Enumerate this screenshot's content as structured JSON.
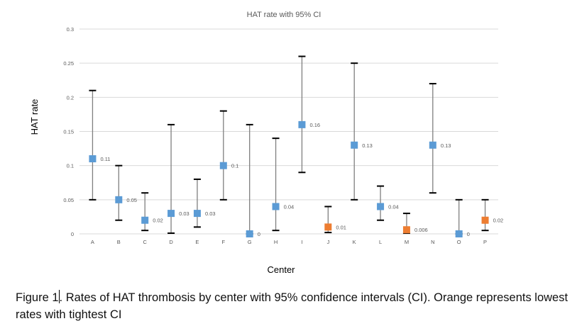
{
  "chart_data": {
    "type": "scatter",
    "title": "HAT rate with 95% CI",
    "xlabel": "Center",
    "ylabel": "HAT rate",
    "ylim": [
      0,
      0.3
    ],
    "yticks": [
      0,
      0.05,
      0.1,
      0.15,
      0.2,
      0.25,
      0.3
    ],
    "ytick_labels": [
      "0",
      "0.05",
      "0.1",
      "0.15",
      "0.2",
      "0.25",
      "0.3"
    ],
    "grid": true,
    "legend": "none",
    "categories": [
      "A",
      "B",
      "C",
      "D",
      "E",
      "F",
      "G",
      "H",
      "I",
      "J",
      "K",
      "L",
      "M",
      "N",
      "O",
      "P"
    ],
    "series": [
      {
        "name": "HAT rate",
        "values": [
          0.11,
          0.05,
          0.02,
          0.03,
          0.03,
          0.1,
          0,
          0.04,
          0.16,
          0.01,
          0.13,
          0.04,
          0.006,
          0.13,
          0,
          0.02
        ],
        "labels": [
          "0.11",
          "0.05",
          "0.02",
          "0.03",
          "0.03",
          "0.1",
          "0",
          "0.04",
          "0.16",
          "0.01",
          "0.13",
          "0.04",
          "0.006",
          "0.13",
          "0",
          "0.02"
        ],
        "ci_lower": [
          0.05,
          0.02,
          0.005,
          0.001,
          0.01,
          0.05,
          0,
          0.005,
          0.09,
          0.002,
          0.05,
          0.02,
          0.001,
          0.06,
          0,
          0.005
        ],
        "ci_upper": [
          0.21,
          0.1,
          0.06,
          0.16,
          0.08,
          0.18,
          0.16,
          0.14,
          0.26,
          0.04,
          0.25,
          0.07,
          0.03,
          0.22,
          0.05,
          0.05
        ],
        "highlight": [
          false,
          false,
          false,
          false,
          false,
          false,
          false,
          false,
          false,
          true,
          false,
          false,
          true,
          false,
          false,
          true
        ]
      }
    ],
    "colors": {
      "marker": "#5B9BD5",
      "highlight_marker": "#ED7D31",
      "gridline": "#D9D9D9",
      "error_bar": "#595959",
      "tick_text": "#595959"
    }
  },
  "caption": {
    "part1": "Figure 1",
    "part2": ". Rates of HAT thrombosis by center with 95% confidence intervals (CI). Orange represents lowest rates with tightest CI"
  }
}
